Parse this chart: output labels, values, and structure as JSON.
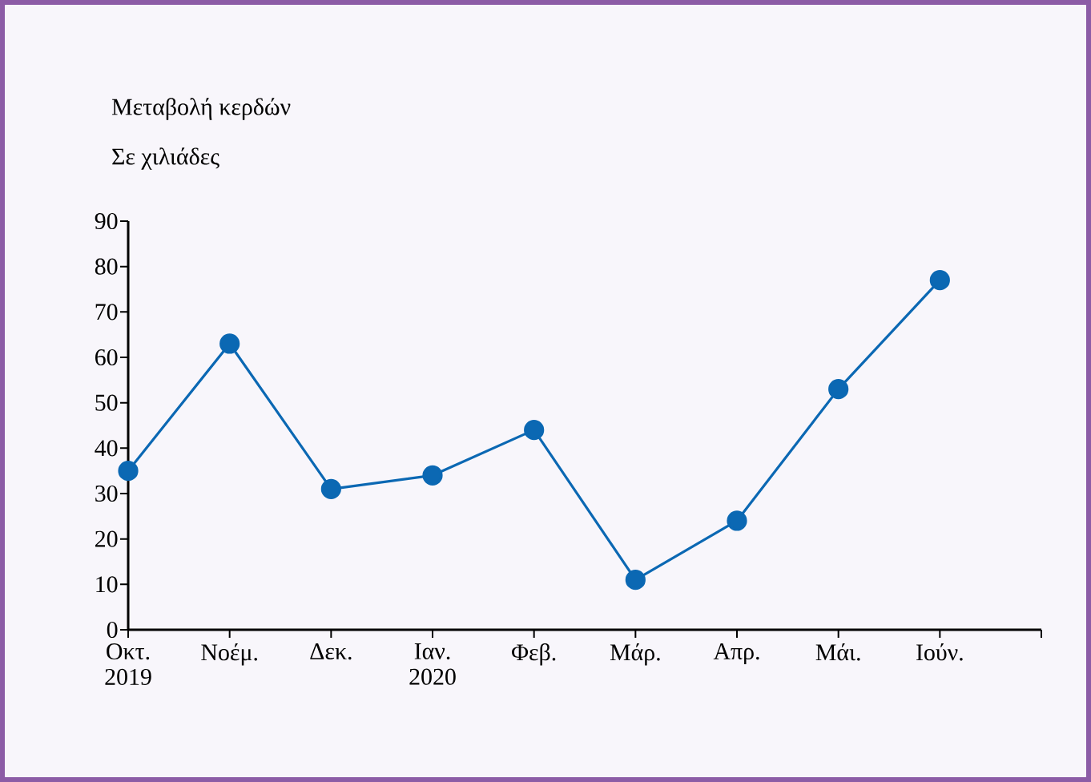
{
  "chart_data": {
    "type": "line",
    "title": "Μεταβολή κερδών",
    "ylabel": "Σε χιλιάδες",
    "categories": [
      "Οκτ. 2019",
      "Νοέμ.",
      "Δεκ.",
      "Ιαν. 2020",
      "Φεβ.",
      "Μάρ.",
      "Απρ.",
      "Μάι.",
      "Ιούν."
    ],
    "series": [
      {
        "color": "#0b68b3",
        "values": [
          35,
          63,
          31,
          34,
          44,
          11,
          24,
          53,
          77
        ]
      }
    ],
    "ylim": [
      0,
      90
    ],
    "yticks": [
      0,
      10,
      20,
      30,
      40,
      50,
      60,
      70,
      80,
      90
    ],
    "marker": "circle",
    "line_style": "solid",
    "grid": false
  }
}
